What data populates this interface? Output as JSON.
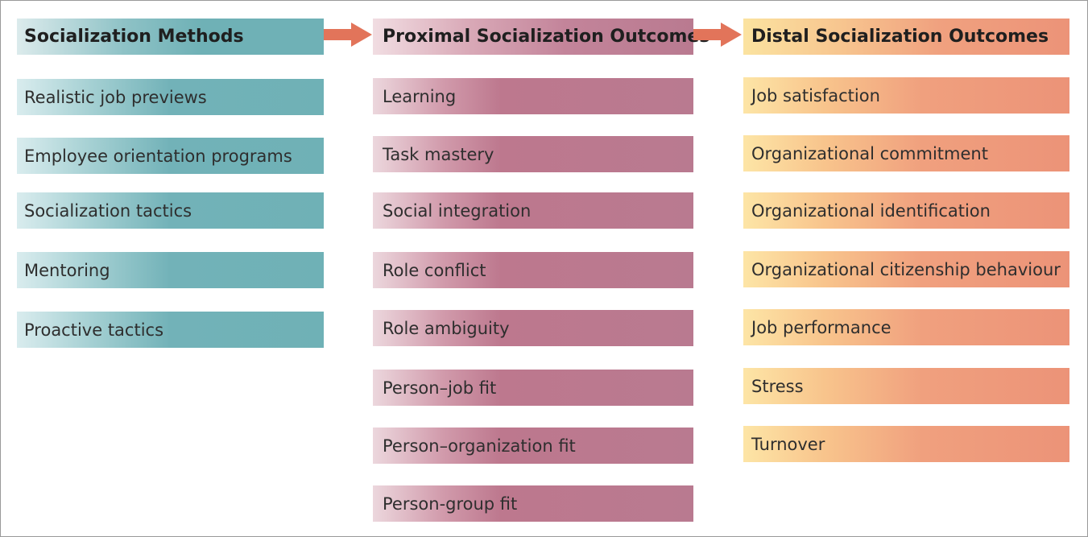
{
  "columns": [
    {
      "title": "Socialization Methods",
      "items": [
        "Realistic job previews",
        "Employee orientation programs",
        "Socialization tactics",
        "Mentoring",
        "Proactive tactics"
      ]
    },
    {
      "title": "Proximal Socialization Outcomes",
      "items": [
        "Learning",
        "Task mastery",
        "Social integration",
        "Role conflict",
        "Role ambiguity",
        "Person–job fit",
        "Person–organization fit",
        "Person-group fit"
      ]
    },
    {
      "title": "Distal Socialization Outcomes",
      "items": [
        "Job satisfaction",
        "Organizational commitment",
        "Organizational identification",
        "Organizational citizenship behaviour",
        "Job performance",
        "Stress",
        "Turnover"
      ]
    }
  ],
  "colors": {
    "teal": "#6fb1b6",
    "plum": "#b97a90",
    "peach": "#ec9378",
    "arrow": "#e2745a"
  }
}
